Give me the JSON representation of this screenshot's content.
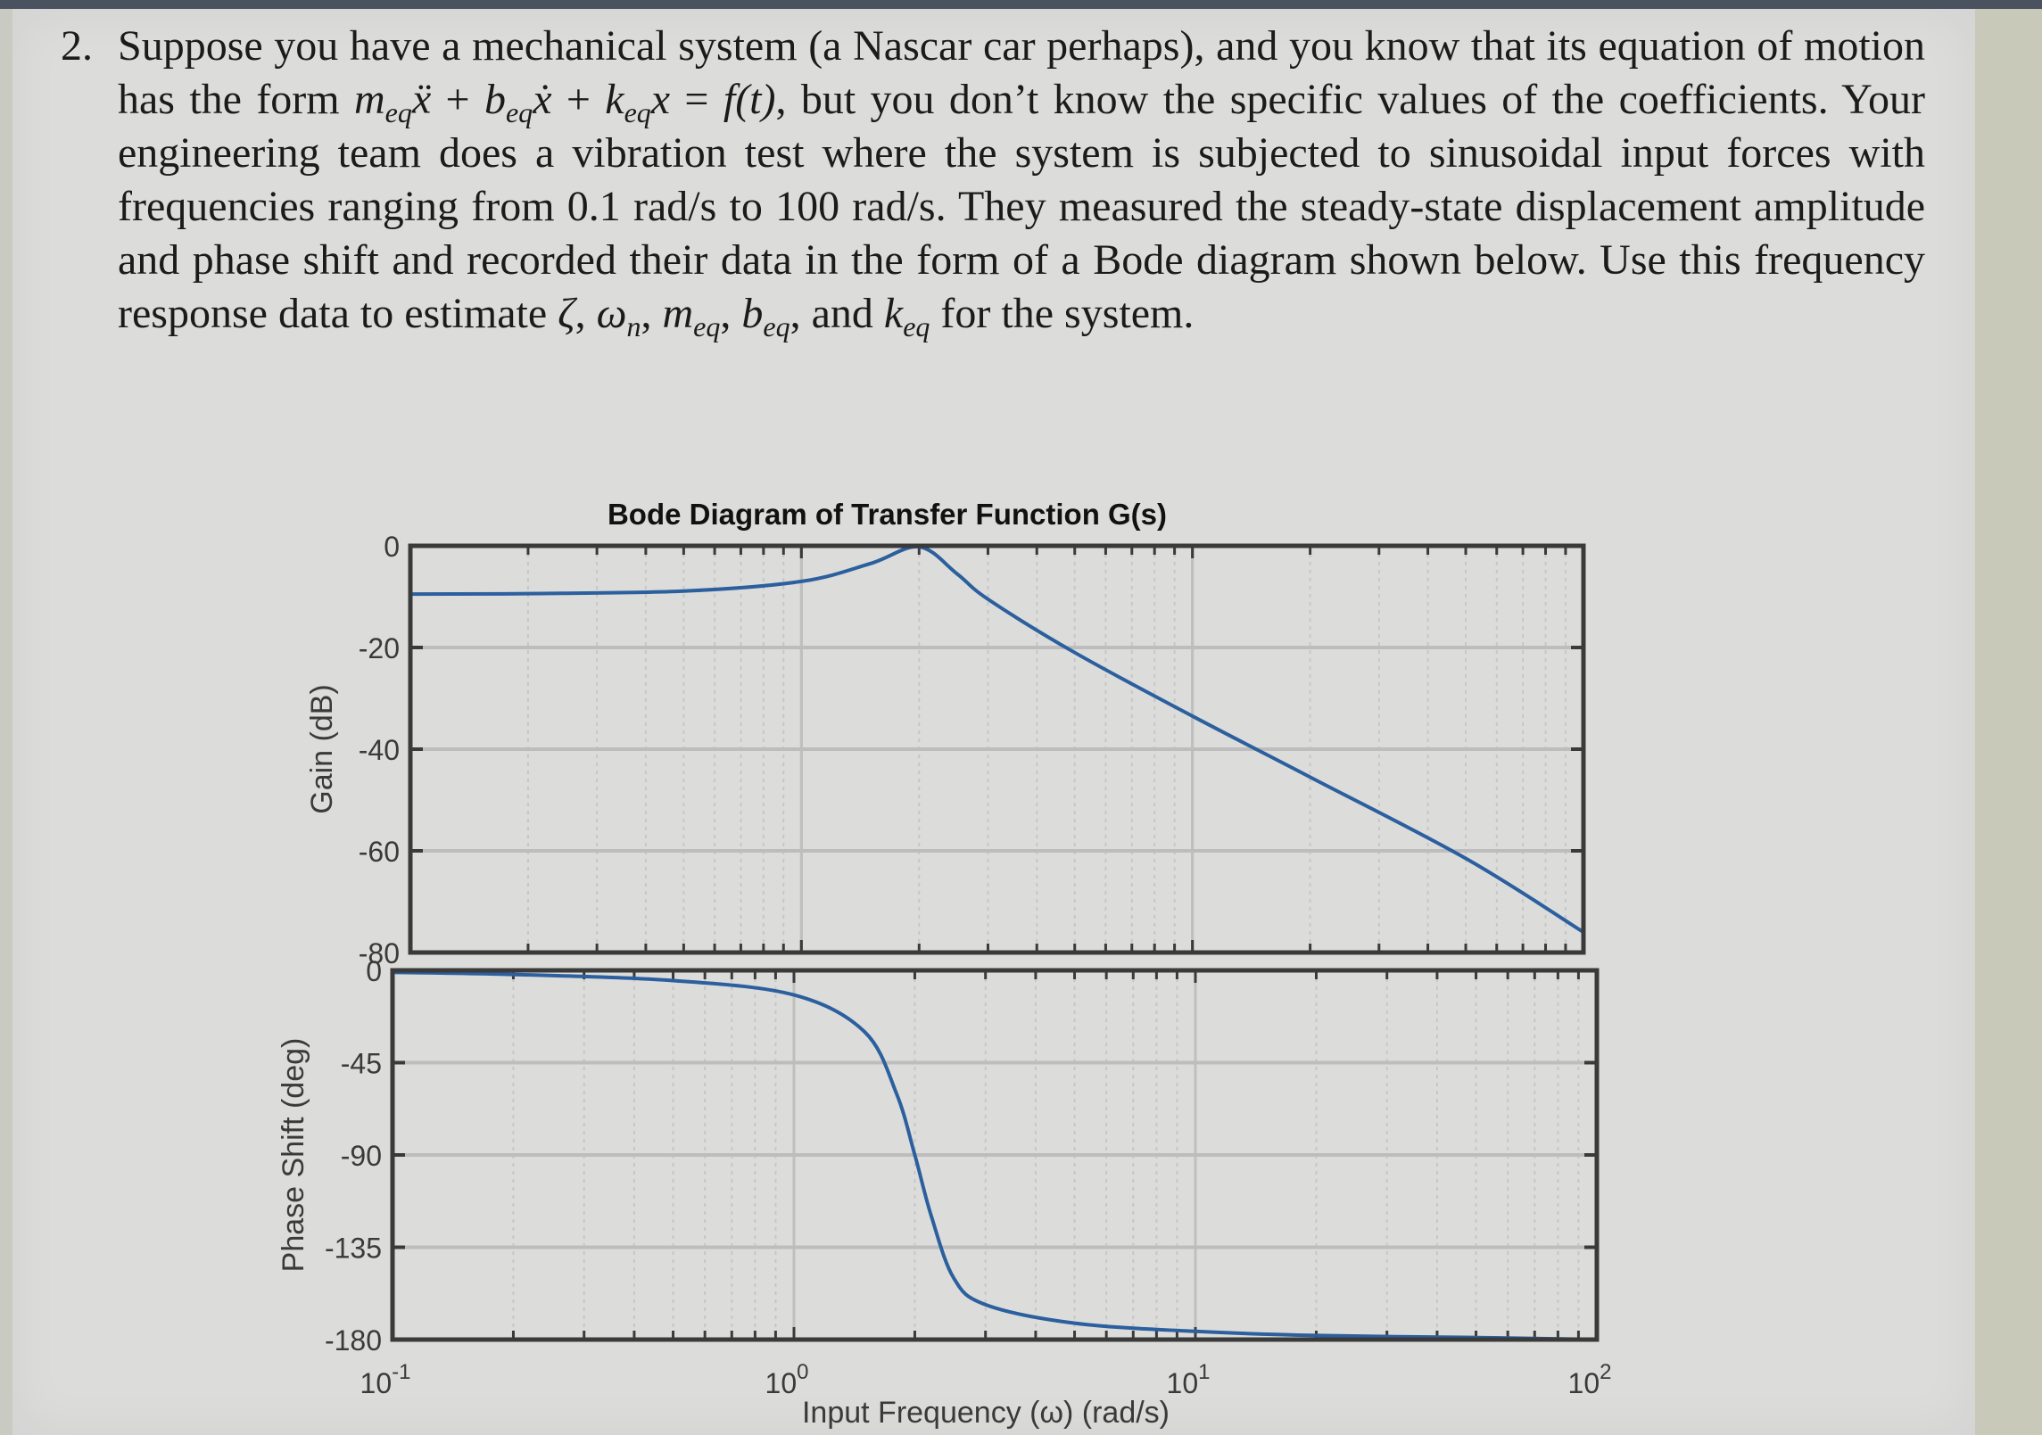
{
  "problem": {
    "number": "2.",
    "text_parts": {
      "p1": "Suppose you have a mechanical system (a Nascar car perhaps), and you know that its equation of motion has the form ",
      "eq_m": "m",
      "eq_sub": "eq",
      "eq_xdd": "ẍ",
      "plus": " + ",
      "eq_b": "b",
      "eq_xd": "ẋ",
      "eq_k": "k",
      "eq_x": "x",
      "equals": " = ",
      "eq_f": "f(t)",
      "p2": ", but you don’t know the specific values of the coefficients. Your engineering team does a vibration test where the system is subjected to sinusoidal input forces with frequencies ranging from 0.1 rad/s to 100 rad/s. They measured the steady-state displacement amplitude and phase shift and recorded their data in the form of a Bode diagram shown below. Use this frequency response data to estimate ",
      "zeta": "ζ",
      "comma": ", ",
      "omega": "ω",
      "omega_sub": "n",
      "m": "m",
      "b": "b",
      "and": ", and ",
      "k": "k",
      "p3": " for the system."
    }
  },
  "chart": {
    "title": "Bode Diagram of Transfer Function G(s)",
    "gain_ylabel": "Gain (dB)",
    "phase_ylabel": "Phase Shift (deg)",
    "xlabel": "Input Frequency (ω)   (rad/s)",
    "gain_ticks": [
      "0",
      "-20",
      "-40",
      "-60",
      "-80"
    ],
    "phase_ticks": [
      "0",
      "-45",
      "-90",
      "-135",
      "-180"
    ],
    "x_ticks": [
      {
        "base": "10",
        "exp": "-1"
      },
      {
        "base": "10",
        "exp": "0"
      },
      {
        "base": "10",
        "exp": "1"
      },
      {
        "base": "10",
        "exp": "2"
      }
    ],
    "line_color": "#2c5f9e"
  },
  "chart_data": [
    {
      "type": "line",
      "title": "Bode Diagram of Transfer Function G(s) — Magnitude",
      "xlabel": "Input Frequency (ω) (rad/s)",
      "ylabel": "Gain (dB)",
      "xscale": "log",
      "xlim": [
        0.1,
        100
      ],
      "ylim": [
        -80,
        0
      ],
      "yticks": [
        0,
        -20,
        -40,
        -60,
        -80
      ],
      "xticks": [
        0.1,
        1,
        10,
        100
      ],
      "grid": true,
      "x": [
        0.1,
        0.2,
        0.5,
        1.0,
        1.5,
        2.0,
        2.5,
        3.0,
        5.0,
        10.0,
        20.0,
        50.0,
        100.0
      ],
      "series": [
        {
          "name": "Gain (dB)",
          "values": [
            -9.5,
            -9.4,
            -8.9,
            -7.0,
            -3.5,
            -0.2,
            -5.5,
            -10.5,
            -21.0,
            -33.5,
            -45.5,
            -61.5,
            -76.0
          ]
        }
      ]
    },
    {
      "type": "line",
      "title": "Bode Diagram of Transfer Function G(s) — Phase",
      "xlabel": "Input Frequency (ω) (rad/s)",
      "ylabel": "Phase Shift (deg)",
      "xscale": "log",
      "xlim": [
        0.1,
        100
      ],
      "ylim": [
        -180,
        0
      ],
      "yticks": [
        0,
        -45,
        -90,
        -135,
        -180
      ],
      "xticks": [
        0.1,
        1,
        10,
        100
      ],
      "grid": true,
      "x": [
        0.1,
        0.2,
        0.5,
        1.0,
        1.5,
        1.8,
        2.0,
        2.2,
        2.5,
        3.0,
        5.0,
        10.0,
        20.0,
        50.0,
        100.0
      ],
      "series": [
        {
          "name": "Phase Shift (deg)",
          "values": [
            -1,
            -2,
            -5,
            -12,
            -30,
            -60,
            -90,
            -120,
            -150,
            -163,
            -172,
            -176,
            -178,
            -179,
            -180
          ]
        }
      ]
    }
  ]
}
